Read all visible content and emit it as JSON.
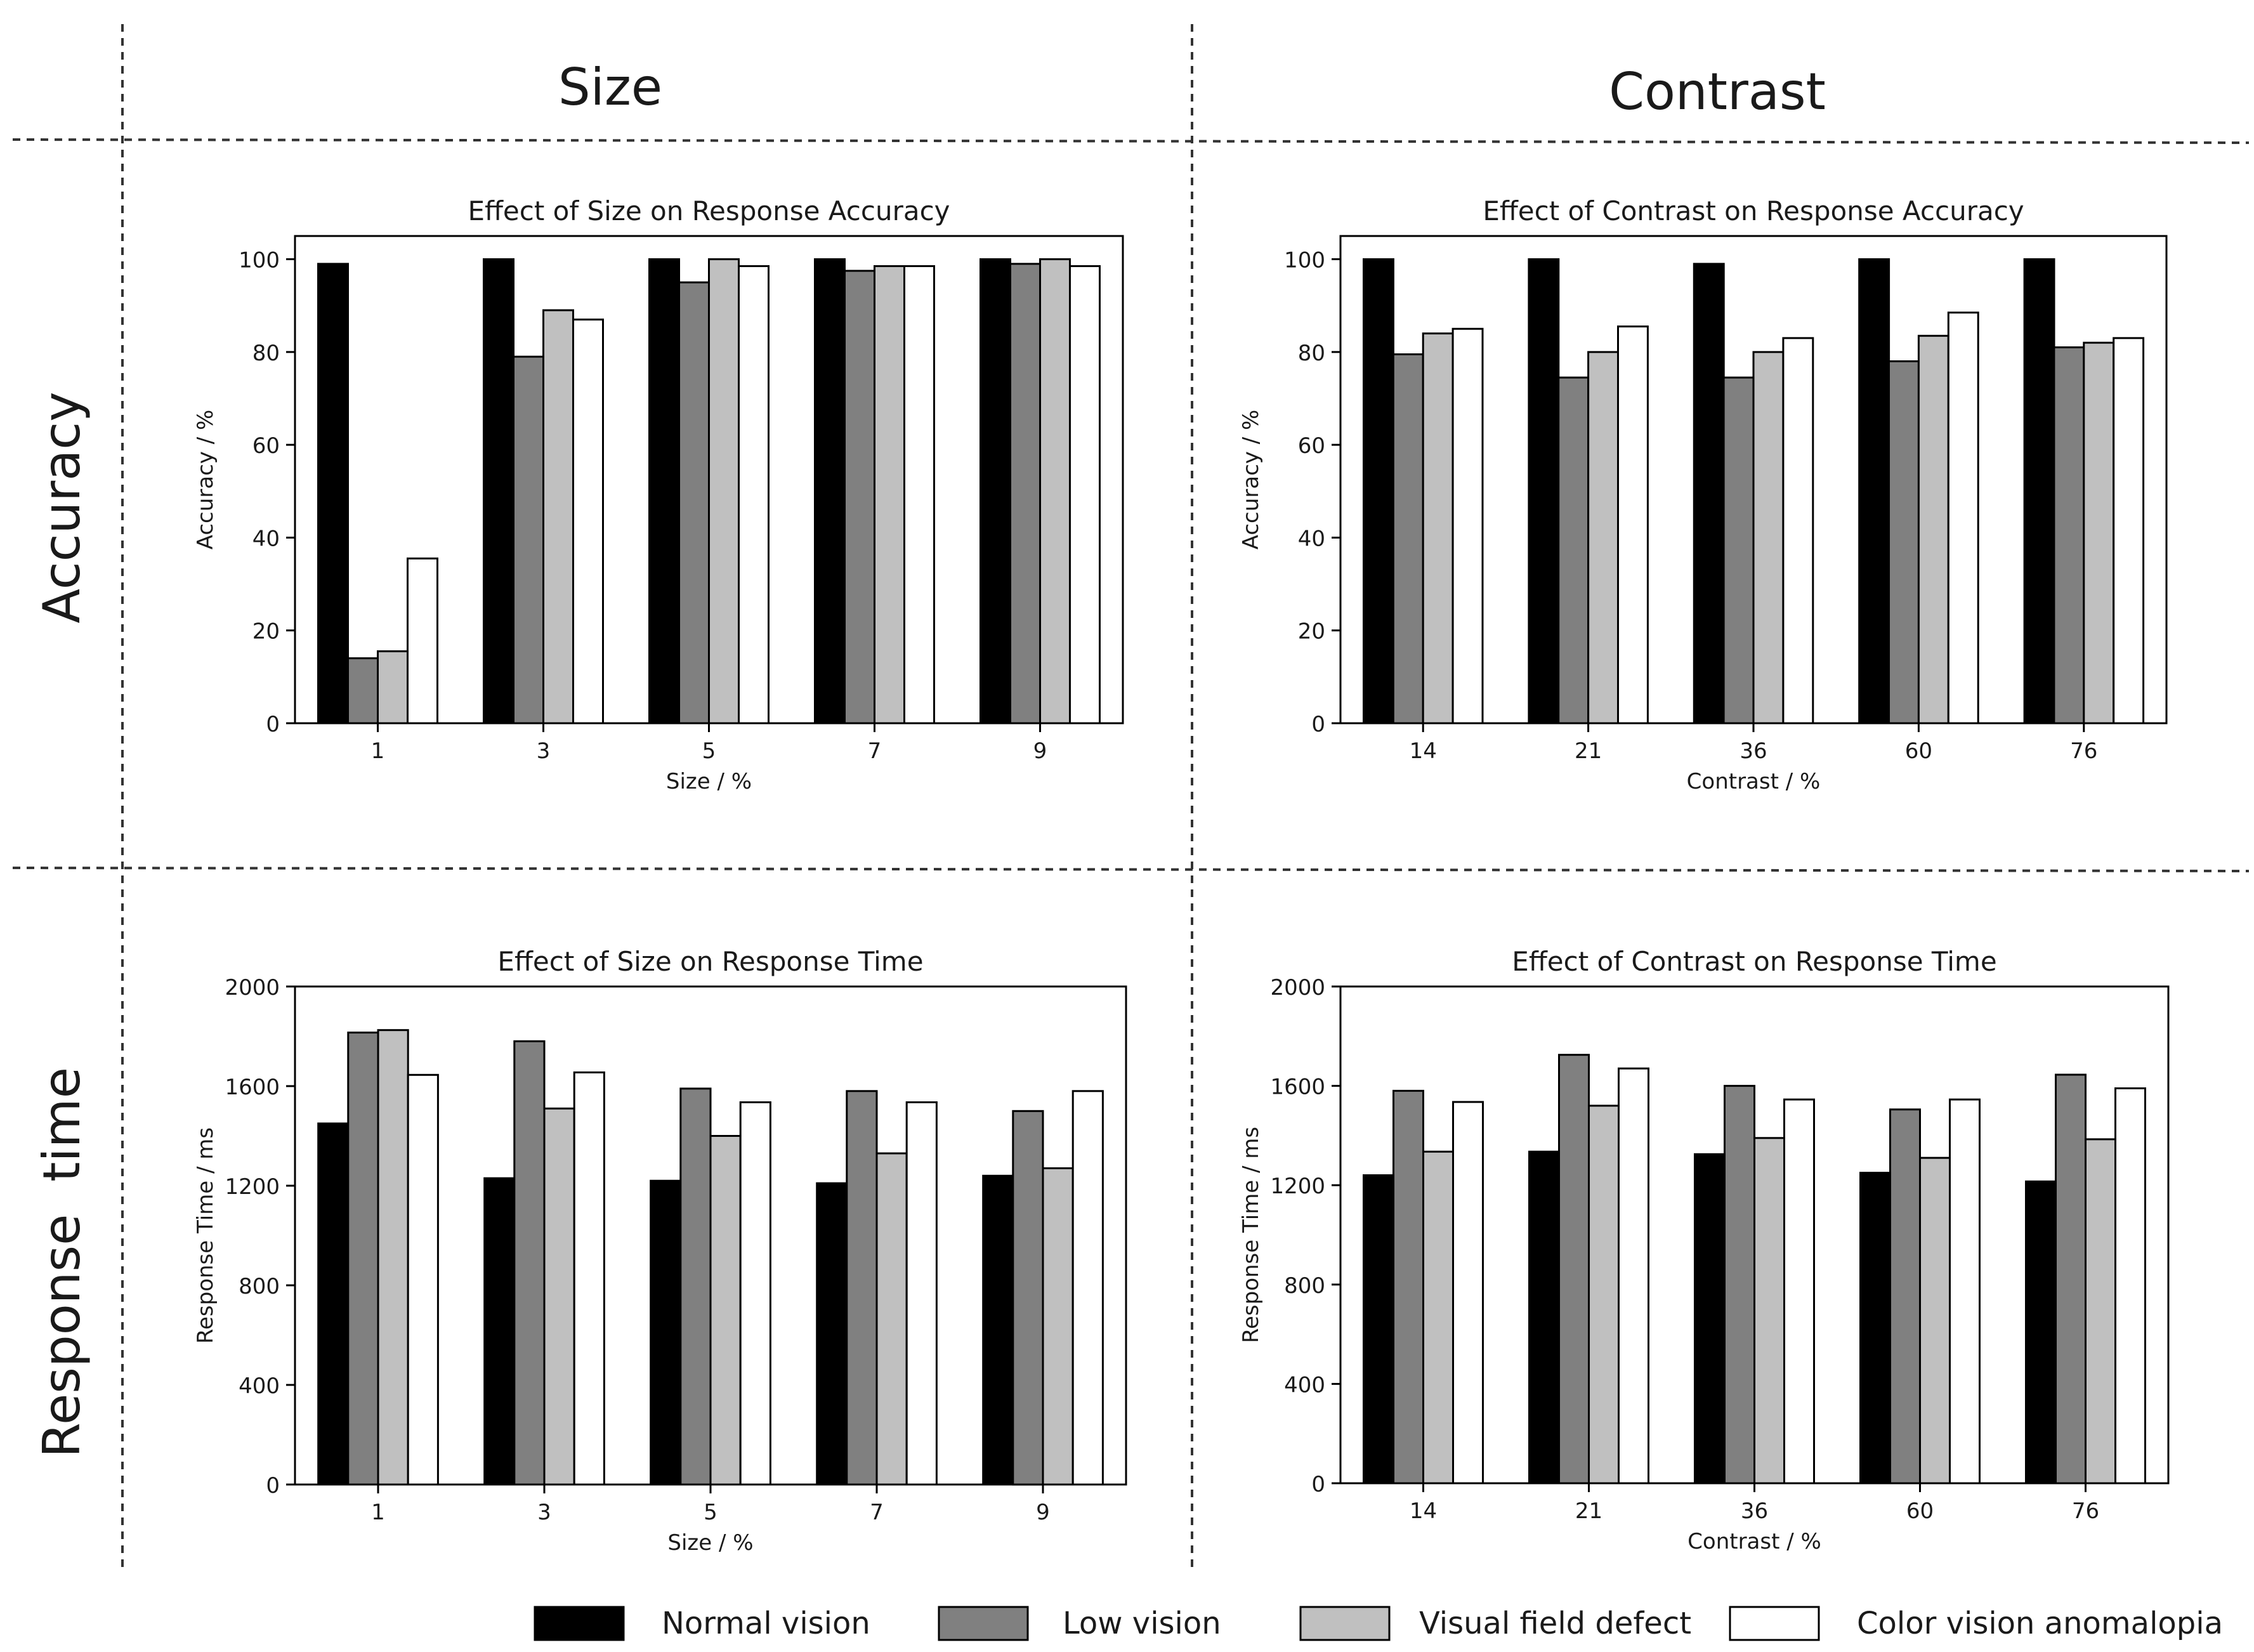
{
  "headers": {
    "col1": "Size",
    "col2": "Contrast",
    "row1": "Accuracy",
    "row2": "Response  time"
  },
  "series_styles": {
    "Normal vision": "#000000",
    "Low vision": "#808080",
    "Visual field defect": "#c0c0c0",
    "Color vision anomalopia": "#ffffff"
  },
  "legend": [
    "Normal vision",
    "Low vision",
    "Visual field defect",
    "Color vision anomalopia"
  ],
  "chart_data": [
    {
      "id": "size-accuracy",
      "type": "bar",
      "title": "Effect of Size on Response Accuracy",
      "xlabel": "Size / %",
      "ylabel": "Accuracy / %",
      "categories": [
        "1",
        "3",
        "5",
        "7",
        "9"
      ],
      "ylim": [
        0,
        105
      ],
      "yticks": [
        0,
        20,
        40,
        60,
        80,
        100
      ],
      "series": [
        {
          "name": "Normal vision",
          "values": [
            99,
            100,
            100,
            100,
            100
          ]
        },
        {
          "name": "Low vision",
          "values": [
            14,
            79,
            95,
            97.5,
            99
          ]
        },
        {
          "name": "Visual field defect",
          "values": [
            15.5,
            89,
            100,
            98.5,
            100
          ]
        },
        {
          "name": "Color vision anomalopia",
          "values": [
            35.5,
            87,
            98.5,
            98.5,
            98.5
          ]
        }
      ]
    },
    {
      "id": "contrast-accuracy",
      "type": "bar",
      "title": "Effect of Contrast on Response Accuracy",
      "xlabel": "Contrast / %",
      "ylabel": "Accuracy / %",
      "categories": [
        "14",
        "21",
        "36",
        "60",
        "76"
      ],
      "ylim": [
        0,
        105
      ],
      "yticks": [
        0,
        20,
        40,
        60,
        80,
        100
      ],
      "series": [
        {
          "name": "Normal vision",
          "values": [
            100,
            100,
            99,
            100,
            100
          ]
        },
        {
          "name": "Low vision",
          "values": [
            79.5,
            74.5,
            74.5,
            78,
            81
          ]
        },
        {
          "name": "Visual field defect",
          "values": [
            84,
            80,
            80,
            83.5,
            82
          ]
        },
        {
          "name": "Color vision anomalopia",
          "values": [
            85,
            85.5,
            83,
            88.5,
            83
          ]
        }
      ]
    },
    {
      "id": "size-time",
      "type": "bar",
      "title": "Effect of Size on Response Time",
      "xlabel": "Size / %",
      "ylabel": "Response Time / ms",
      "categories": [
        "1",
        "3",
        "5",
        "7",
        "9"
      ],
      "ylim": [
        0,
        2000
      ],
      "yticks": [
        0,
        400,
        800,
        1200,
        1600,
        2000
      ],
      "series": [
        {
          "name": "Normal vision",
          "values": [
            1450,
            1230,
            1220,
            1210,
            1240
          ]
        },
        {
          "name": "Low vision",
          "values": [
            1815,
            1780,
            1590,
            1580,
            1500
          ]
        },
        {
          "name": "Visual field defect",
          "values": [
            1825,
            1510,
            1400,
            1330,
            1270
          ]
        },
        {
          "name": "Color vision anomalopia",
          "values": [
            1645,
            1655,
            1535,
            1535,
            1580
          ]
        }
      ]
    },
    {
      "id": "contrast-time",
      "type": "bar",
      "title": "Effect of Contrast on Response Time",
      "xlabel": "Contrast / %",
      "ylabel": "Response Time / ms",
      "categories": [
        "14",
        "21",
        "36",
        "60",
        "76"
      ],
      "ylim": [
        0,
        2000
      ],
      "yticks": [
        0,
        400,
        800,
        1200,
        1600,
        2000
      ],
      "series": [
        {
          "name": "Normal vision",
          "values": [
            1240,
            1335,
            1325,
            1250,
            1215
          ]
        },
        {
          "name": "Low vision",
          "values": [
            1580,
            1725,
            1600,
            1505,
            1645
          ]
        },
        {
          "name": "Visual field defect",
          "values": [
            1335,
            1520,
            1390,
            1310,
            1385
          ]
        },
        {
          "name": "Color vision anomalopia",
          "values": [
            1535,
            1670,
            1545,
            1545,
            1590
          ]
        }
      ]
    }
  ]
}
